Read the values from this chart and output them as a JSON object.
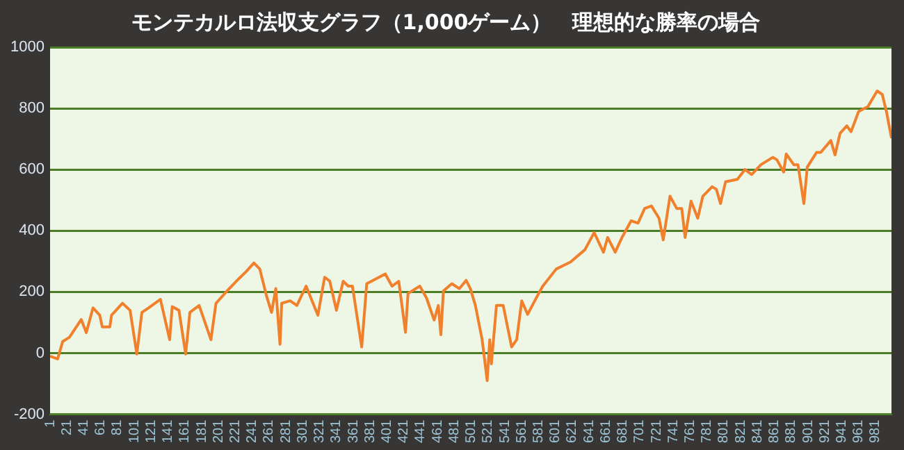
{
  "chart_data": {
    "type": "line",
    "title": "モンテカルロ法収支グラフ（1,000ゲーム）　理想的な勝率の場合",
    "x": [
      1,
      10,
      16,
      24,
      38,
      44,
      52,
      60,
      63,
      72,
      74,
      87,
      96,
      104,
      110,
      118,
      132,
      143,
      146,
      154,
      162,
      167,
      178,
      192,
      198,
      211,
      225,
      234,
      243,
      250,
      258,
      264,
      269,
      274,
      276,
      286,
      294,
      305,
      319,
      327,
      333,
      341,
      349,
      355,
      360,
      371,
      377,
      388,
      399,
      407,
      415,
      423,
      426,
      440,
      448,
      457,
      462,
      465,
      468,
      478,
      487,
      495,
      500,
      506,
      514,
      520,
      523,
      525,
      531,
      539,
      549,
      555,
      561,
      568,
      578,
      586,
      602,
      619,
      636,
      647,
      658,
      663,
      672,
      680,
      691,
      699,
      707,
      715,
      724,
      729,
      737,
      745,
      751,
      755,
      762,
      770,
      776,
      787,
      792,
      797,
      803,
      817,
      826,
      834,
      845,
      859,
      864,
      872,
      875,
      884,
      889,
      896,
      900,
      911,
      916,
      928,
      933,
      939,
      947,
      952,
      961,
      972,
      983,
      989,
      994,
      1000
    ],
    "values": [
      -10,
      -19,
      38,
      52,
      110,
      67,
      148,
      124,
      86,
      86,
      124,
      163,
      140,
      -3,
      133,
      148,
      176,
      44,
      152,
      140,
      -3,
      133,
      156,
      44,
      163,
      203,
      243,
      267,
      295,
      275,
      187,
      133,
      211,
      29,
      163,
      171,
      156,
      219,
      124,
      248,
      236,
      140,
      235,
      219,
      219,
      20,
      227,
      243,
      259,
      219,
      235,
      68,
      195,
      219,
      180,
      108,
      156,
      60,
      203,
      227,
      211,
      238,
      211,
      156,
      44,
      -90,
      44,
      -35,
      156,
      156,
      20,
      44,
      171,
      127,
      179,
      219,
      275,
      298,
      338,
      394,
      330,
      378,
      330,
      378,
      433,
      425,
      473,
      481,
      441,
      370,
      513,
      473,
      473,
      378,
      497,
      441,
      513,
      544,
      536,
      489,
      560,
      568,
      600,
      584,
      616,
      640,
      632,
      592,
      651,
      616,
      616,
      489,
      608,
      656,
      656,
      695,
      648,
      719,
      743,
      724,
      790,
      806,
      857,
      846,
      790,
      703
    ],
    "color": "#f0802c",
    "xlim": [
      1,
      1000
    ],
    "xticks": [
      1,
      21,
      41,
      61,
      81,
      101,
      121,
      141,
      161,
      181,
      201,
      221,
      241,
      261,
      281,
      301,
      321,
      341,
      361,
      381,
      401,
      421,
      441,
      461,
      481,
      501,
      521,
      541,
      561,
      581,
      601,
      621,
      641,
      661,
      681,
      701,
      721,
      741,
      761,
      781,
      801,
      821,
      841,
      861,
      881,
      901,
      921,
      941,
      961,
      981
    ],
    "ylim": [
      -200,
      1000
    ],
    "yticks": [
      -200,
      0,
      200,
      400,
      600,
      800,
      1000
    ],
    "grid": "y",
    "legend": false,
    "marker": "none",
    "line_style": "solid"
  }
}
